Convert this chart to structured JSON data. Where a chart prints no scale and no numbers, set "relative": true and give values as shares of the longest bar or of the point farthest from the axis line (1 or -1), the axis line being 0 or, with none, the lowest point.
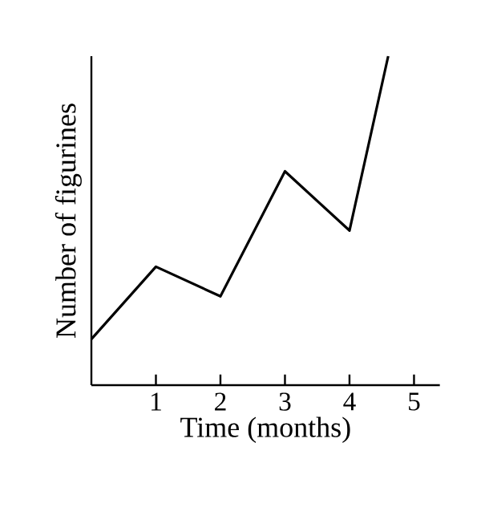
{
  "chart_data": {
    "type": "line",
    "relative": true,
    "xlabel": "Time (months)",
    "ylabel": "Number of figurines",
    "x": [
      0,
      1,
      2,
      3,
      4,
      4.6
    ],
    "values": [
      0.14,
      0.36,
      0.27,
      0.65,
      0.47,
      1
    ],
    "color": "#000000",
    "xlim": [
      0,
      5.4
    ],
    "xticks": [
      1,
      2,
      3,
      4,
      5
    ]
  }
}
